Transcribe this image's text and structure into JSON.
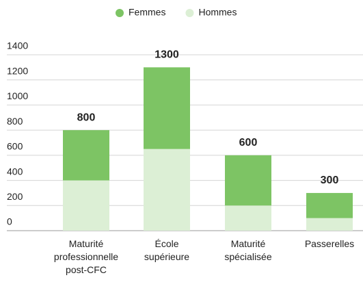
{
  "chart_data": {
    "type": "stacked_bar",
    "categories": [
      "Maturité professionnelle post-CFC",
      "École supérieure",
      "Maturité spécialisée",
      "Passerelles"
    ],
    "series": [
      {
        "name": "Hommes",
        "color": "#dcefd5",
        "values": [
          400,
          650,
          200,
          100
        ]
      },
      {
        "name": "Femmes",
        "color": "#7dc464",
        "values": [
          400,
          650,
          400,
          200
        ]
      }
    ],
    "total_labels": [
      800,
      1300,
      600,
      300
    ],
    "ylim": [
      0,
      1400
    ],
    "yticks": [
      0,
      200,
      400,
      600,
      800,
      1000,
      1200,
      1400
    ],
    "grid": true,
    "legend": "top"
  }
}
